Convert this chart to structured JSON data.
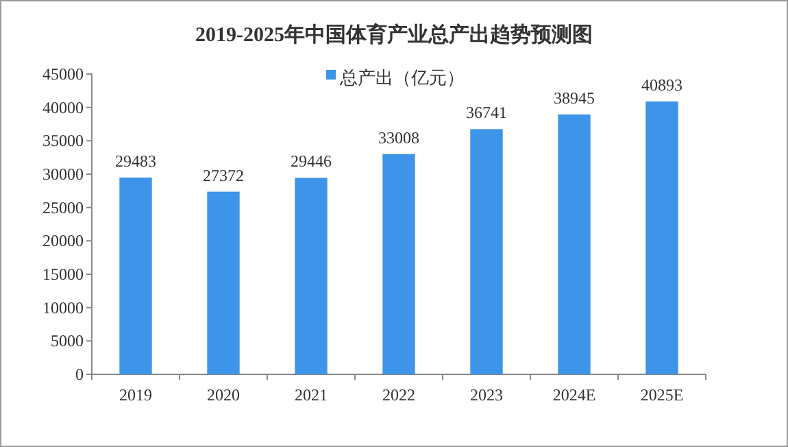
{
  "chart_data": {
    "type": "bar",
    "title": "2019-2025年中国体育产业总产出趋势预测图",
    "categories": [
      "2019",
      "2020",
      "2021",
      "2022",
      "2023",
      "2024E",
      "2025E"
    ],
    "series": [
      {
        "name": "总产出（亿元）",
        "color": "#3d94e8",
        "values": [
          29483,
          27372,
          29446,
          33008,
          36741,
          38945,
          40893
        ]
      }
    ],
    "ylim": [
      0,
      45000
    ],
    "yticks": [
      0,
      5000,
      10000,
      15000,
      20000,
      25000,
      30000,
      35000,
      40000,
      45000
    ],
    "data_labels": true,
    "legend": "top",
    "grid": false
  }
}
